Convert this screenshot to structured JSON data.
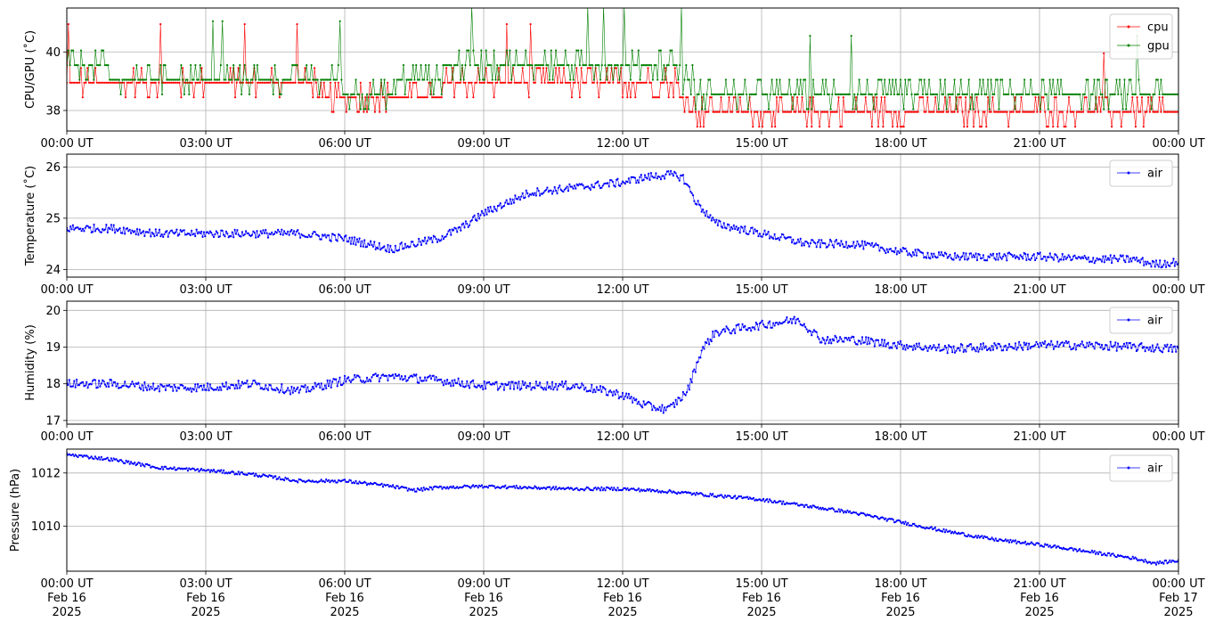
{
  "chart_data": [
    {
      "type": "line",
      "ylabel": "CPU/GPU (˚C)",
      "xlim": [
        "2025-02-16 00:00",
        "2025-02-17 00:00"
      ],
      "ylim": [
        37.3,
        41.5
      ],
      "yticks": [
        38,
        40
      ],
      "xtick_labels": [
        "00:00 UT",
        "03:00 UT",
        "06:00 UT",
        "09:00 UT",
        "12:00 UT",
        "15:00 UT",
        "18:00 UT",
        "21:00 UT",
        "00:00 UT"
      ],
      "grid": true,
      "legend_position": "top-right",
      "series": [
        {
          "name": "cpu",
          "color": "#ff0000",
          "x_hours": [
            0,
            1,
            2,
            3,
            4,
            5,
            5.5,
            6,
            7,
            8,
            9,
            10,
            11,
            12,
            13,
            13.6,
            14,
            15,
            16,
            17,
            18,
            19,
            20,
            21,
            22,
            23,
            24
          ],
          "values": [
            39.2,
            39.1,
            39.1,
            39.2,
            39.1,
            39.1,
            38.7,
            38.7,
            38.7,
            38.7,
            39.2,
            39.2,
            39.1,
            39.2,
            39.2,
            38.0,
            38.0,
            38.0,
            38.0,
            38.1,
            38.0,
            38.0,
            38.0,
            38.0,
            38.0,
            38.0,
            38.0
          ]
        },
        {
          "name": "gpu",
          "color": "#008000",
          "x_hours": [
            0,
            1,
            2,
            3,
            4,
            5,
            5.5,
            6,
            7,
            8,
            9,
            10,
            11,
            12,
            13,
            13.6,
            14,
            15,
            16,
            17,
            18,
            19,
            20,
            21,
            22,
            23,
            24
          ],
          "values": [
            39.7,
            39.2,
            39.2,
            39.2,
            39.2,
            39.2,
            39.2,
            38.7,
            38.7,
            39.2,
            39.7,
            39.7,
            39.7,
            39.7,
            39.7,
            38.7,
            38.6,
            38.6,
            38.6,
            38.6,
            38.6,
            38.6,
            38.6,
            38.6,
            38.6,
            38.6,
            38.6
          ]
        }
      ]
    },
    {
      "type": "line",
      "ylabel": "Temperature (˚C)",
      "xlim": [
        "2025-02-16 00:00",
        "2025-02-17 00:00"
      ],
      "ylim": [
        23.85,
        26.25
      ],
      "yticks": [
        24,
        25,
        26
      ],
      "xtick_labels": [
        "00:00 UT",
        "03:00 UT",
        "06:00 UT",
        "09:00 UT",
        "12:00 UT",
        "15:00 UT",
        "18:00 UT",
        "21:00 UT",
        "00:00 UT"
      ],
      "grid": true,
      "legend_position": "top-right",
      "series": [
        {
          "name": "air",
          "color": "#0000ff",
          "x_hours": [
            0,
            1,
            2,
            3,
            4,
            5,
            6,
            7,
            8,
            8.5,
            9,
            10,
            11,
            12,
            12.5,
            13,
            13.3,
            13.6,
            14,
            15,
            16,
            17,
            18,
            19,
            20,
            21,
            22,
            23,
            23.5,
            24
          ],
          "values": [
            24.8,
            24.8,
            24.7,
            24.7,
            24.7,
            24.7,
            24.6,
            24.4,
            24.6,
            24.8,
            25.1,
            25.5,
            25.6,
            25.7,
            25.8,
            25.85,
            25.8,
            25.3,
            24.9,
            24.7,
            24.5,
            24.5,
            24.35,
            24.25,
            24.25,
            24.25,
            24.2,
            24.2,
            24.1,
            24.15
          ]
        }
      ]
    },
    {
      "type": "line",
      "ylabel": "Humidity (%)",
      "xlim": [
        "2025-02-16 00:00",
        "2025-02-17 00:00"
      ],
      "ylim": [
        16.9,
        20.25
      ],
      "yticks": [
        17,
        18,
        19,
        20
      ],
      "xtick_labels": [
        "00:00 UT",
        "03:00 UT",
        "06:00 UT",
        "09:00 UT",
        "12:00 UT",
        "15:00 UT",
        "18:00 UT",
        "21:00 UT",
        "00:00 UT"
      ],
      "grid": true,
      "legend_position": "top-right",
      "series": [
        {
          "name": "air",
          "color": "#0000ff",
          "x_hours": [
            0,
            1,
            2,
            3,
            4,
            5,
            6,
            7,
            8,
            9,
            10,
            11,
            12,
            12.5,
            13,
            13.4,
            13.7,
            14,
            15,
            15.8,
            16.3,
            17,
            18,
            19,
            20,
            21,
            22,
            23,
            24
          ],
          "values": [
            18.0,
            18.0,
            17.9,
            17.9,
            18.0,
            17.8,
            18.1,
            18.2,
            18.1,
            17.95,
            17.95,
            17.95,
            17.7,
            17.4,
            17.3,
            17.8,
            18.9,
            19.4,
            19.6,
            19.75,
            19.2,
            19.2,
            19.05,
            18.95,
            19.0,
            19.05,
            19.05,
            19.0,
            18.95
          ]
        }
      ]
    },
    {
      "type": "line",
      "ylabel": "Pressure (hPa)",
      "xlim": [
        "2025-02-16 00:00",
        "2025-02-17 00:00"
      ],
      "ylim": [
        1008.3,
        1012.9
      ],
      "yticks": [
        1010,
        1012
      ],
      "xtick_labels": [
        "00:00 UT\nFeb 16\n2025",
        "03:00 UT\nFeb 16\n2025",
        "06:00 UT\nFeb 16\n2025",
        "09:00 UT\nFeb 16\n2025",
        "12:00 UT\nFeb 16\n2025",
        "15:00 UT\nFeb 16\n2025",
        "18:00 UT\nFeb 16\n2025",
        "21:00 UT\nFeb 16\n2025",
        "00:00 UT\nFeb 17\n2025"
      ],
      "grid": true,
      "legend_position": "top-right",
      "series": [
        {
          "name": "air",
          "color": "#0000ff",
          "x_hours": [
            0,
            1,
            2,
            3,
            4,
            5,
            6,
            7,
            7.5,
            8,
            9,
            10,
            11,
            12,
            13,
            14,
            15,
            16,
            17,
            18,
            19,
            20,
            21,
            22,
            23,
            23.5,
            24
          ],
          "values": [
            1012.7,
            1012.5,
            1012.2,
            1012.1,
            1011.95,
            1011.7,
            1011.7,
            1011.5,
            1011.35,
            1011.45,
            1011.5,
            1011.45,
            1011.4,
            1011.4,
            1011.3,
            1011.15,
            1011.0,
            1010.75,
            1010.5,
            1010.15,
            1009.8,
            1009.5,
            1009.3,
            1009.05,
            1008.8,
            1008.6,
            1008.7
          ]
        }
      ]
    }
  ]
}
